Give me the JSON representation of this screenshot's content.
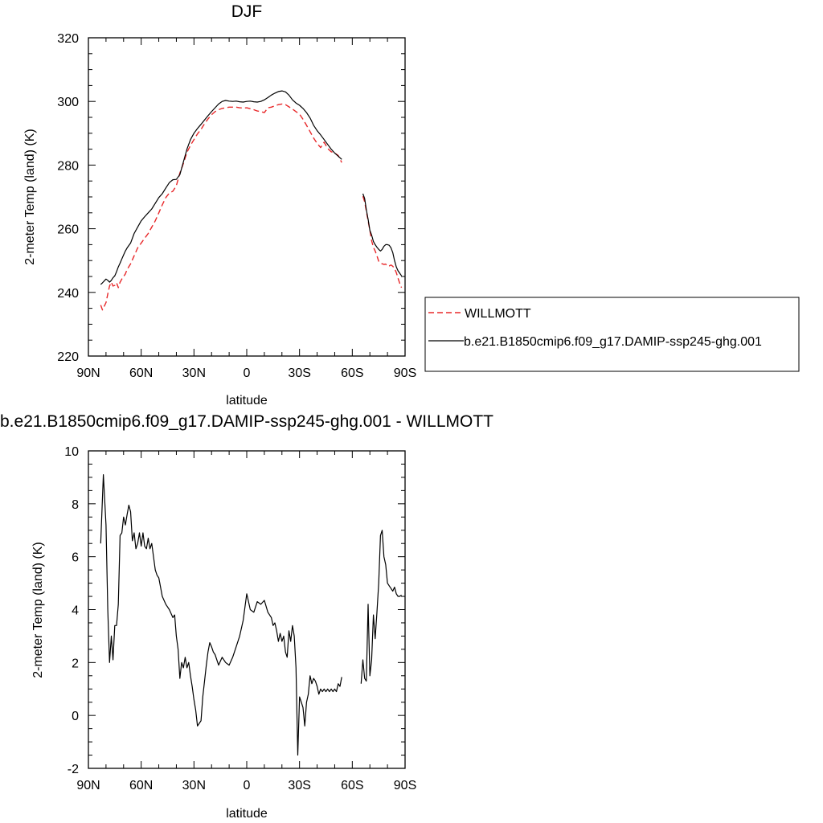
{
  "chart_data": [
    {
      "type": "line",
      "title": "DJF",
      "xlabel": "latitude",
      "ylabel": "2-meter Temp (land) (K)",
      "xlim": [
        90,
        -90
      ],
      "ylim": [
        220,
        320
      ],
      "x_ticks": [
        90,
        60,
        30,
        0,
        -30,
        -60,
        -90
      ],
      "x_tick_labels": [
        "90N",
        "60N",
        "30N",
        "0",
        "30S",
        "60S",
        "90S"
      ],
      "y_ticks": [
        220,
        240,
        260,
        280,
        300,
        320
      ],
      "y_tick_labels": [
        "220",
        "240",
        "260",
        "280",
        "300",
        "320"
      ],
      "legend": {
        "placement": "right",
        "entries": [
          "WILLMOTT",
          "b.e21.B1850cmip6.f09_g17.DAMIP-ssp245-ghg.001"
        ]
      },
      "series": [
        {
          "name": "WILLMOTT",
          "color": "#e8282a",
          "dash": true,
          "segments": [
            {
              "x": [
                83,
                82,
                80,
                79,
                78,
                77,
                76,
                75,
                74,
                73,
                72,
                71,
                70,
                69,
                68,
                66,
                64,
                62,
                60,
                58,
                56,
                54,
                52,
                50,
                48,
                46,
                44,
                42,
                40,
                38,
                36,
                34,
                32,
                30,
                28,
                26,
                24,
                22,
                20,
                18,
                16,
                14,
                12,
                10,
                8,
                6,
                4,
                2,
                0,
                -2,
                -4,
                -6,
                -8,
                -10,
                -12,
                -14,
                -16,
                -18,
                -20,
                -22,
                -24,
                -26,
                -28,
                -30,
                -32,
                -34,
                -36,
                -38,
                -40,
                -42,
                -44,
                -46,
                -48,
                -50,
                -52,
                -54
              ],
              "y": [
                236,
                234.5,
                236.8,
                239.5,
                242,
                243.2,
                242,
                242.2,
                243,
                241.5,
                243.2,
                244.2,
                245,
                245.8,
                247.2,
                249,
                251.5,
                254,
                255.5,
                257,
                258.5,
                260.5,
                262.5,
                265,
                267.5,
                269.8,
                271.2,
                271.8,
                273.5,
                277.5,
                280.5,
                284,
                286.2,
                288,
                289.8,
                291.2,
                293,
                294.5,
                295.8,
                296.8,
                297.4,
                297.8,
                298.0,
                298.2,
                298.2,
                298.2,
                298.0,
                297.9,
                298.0,
                297.7,
                297.4,
                297.0,
                296.8,
                296.5,
                298.0,
                298.2,
                298.6,
                299.0,
                299.2,
                299.0,
                298.3,
                297.6,
                296.8,
                296.0,
                294.4,
                292.5,
                290.5,
                288.5,
                286.8,
                285.5,
                287.2,
                285.2,
                284.2,
                283.8,
                283.0,
                280.8
              ]
            },
            {
              "x": [
                -66,
                -67,
                -68,
                -69,
                -70,
                -71,
                -72,
                -73,
                -74,
                -75,
                -76,
                -77,
                -78,
                -79,
                -80,
                -81,
                -82,
                -83,
                -84,
                -85,
                -86,
                -87,
                -88
              ],
              "y": [
                270.2,
                268.5,
                265.5,
                262.5,
                259.5,
                256.2,
                254.2,
                253.0,
                251.5,
                249.8,
                249.2,
                249.0,
                248.8,
                248.9,
                248.2,
                248.3,
                248.6,
                248.2,
                247.5,
                246.2,
                244.5,
                242.8,
                241.5
              ]
            }
          ]
        },
        {
          "name": "b.e21.B1850cmip6.f09_g17.DAMIP-ssp245-ghg.001",
          "color": "#000000",
          "dash": false,
          "segments": [
            {
              "x": [
                83,
                82,
                80,
                79,
                78,
                77,
                76,
                75,
                74,
                73,
                72,
                71,
                70,
                69,
                68,
                66,
                64,
                62,
                60,
                58,
                56,
                54,
                52,
                50,
                48,
                46,
                44,
                42,
                40,
                38,
                36,
                34,
                32,
                30,
                28,
                26,
                24,
                22,
                20,
                18,
                16,
                14,
                12,
                10,
                8,
                6,
                4,
                2,
                0,
                -2,
                -4,
                -6,
                -8,
                -10,
                -12,
                -14,
                -16,
                -18,
                -20,
                -22,
                -24,
                -26,
                -28,
                -30,
                -32,
                -34,
                -36,
                -38,
                -40,
                -42,
                -44,
                -46,
                -48,
                -50,
                -52,
                -54
              ],
              "y": [
                242.5,
                243.0,
                244.2,
                243.8,
                243.2,
                243.8,
                244.6,
                245.2,
                246.5,
                248.0,
                249.2,
                250.5,
                251.8,
                253.0,
                254.0,
                255.5,
                258.5,
                260.5,
                262.5,
                263.8,
                265.0,
                266.2,
                268.0,
                269.8,
                271.0,
                272.8,
                274.5,
                275.4,
                275.5,
                277.0,
                281.0,
                285.0,
                288.0,
                290.0,
                291.5,
                292.8,
                294.2,
                295.5,
                296.8,
                298.0,
                299.2,
                300.0,
                300.3,
                300.1,
                300.0,
                300.1,
                299.9,
                299.8,
                300.0,
                300.1,
                299.9,
                299.8,
                300.0,
                300.5,
                301.2,
                302.0,
                302.6,
                303.1,
                303.3,
                303.0,
                302.0,
                300.5,
                299.5,
                298.8,
                297.8,
                296.5,
                294.8,
                292.5,
                290.8,
                289.5,
                288.0,
                286.5,
                285.0,
                283.8,
                282.8,
                281.8
              ]
            },
            {
              "x": [
                -66,
                -67,
                -68,
                -69,
                -70,
                -71,
                -72,
                -73,
                -74,
                -75,
                -76,
                -77,
                -78,
                -79,
                -80,
                -81,
                -82,
                -83,
                -84,
                -85,
                -86,
                -87,
                -88
              ],
              "y": [
                271.0,
                269.5,
                266.0,
                263.0,
                259.5,
                258.0,
                256.0,
                255.0,
                254.2,
                253.5,
                253.0,
                253.5,
                254.5,
                255.0,
                255.0,
                254.8,
                254.0,
                252.5,
                250.0,
                248.0,
                246.8,
                246.0,
                245.2
              ]
            }
          ]
        }
      ]
    },
    {
      "type": "line",
      "title": "b.e21.B1850cmip6.f09_g17.DAMIP-ssp245-ghg.001 - WILLMOTT",
      "xlabel": "latitude",
      "ylabel": "2-meter Temp (land) (K)",
      "xlim": [
        90,
        -90
      ],
      "ylim": [
        -2,
        10
      ],
      "x_ticks": [
        90,
        60,
        30,
        0,
        -30,
        -60,
        -90
      ],
      "x_tick_labels": [
        "90N",
        "60N",
        "30N",
        "0",
        "30S",
        "60S",
        "90S"
      ],
      "y_ticks": [
        -2,
        0,
        2,
        4,
        6,
        8,
        10
      ],
      "y_tick_labels": [
        "-2",
        "0",
        "2",
        "4",
        "6",
        "8",
        "10"
      ],
      "series": [
        {
          "color": "#000000",
          "dash": false,
          "segments": [
            {
              "x": [
                83,
                81.5,
                80,
                79,
                78,
                77,
                76,
                75,
                74,
                73,
                72,
                71,
                70,
                69,
                68,
                67,
                66,
                65,
                64,
                63,
                62,
                61,
                60,
                59,
                58,
                57,
                56,
                55,
                54,
                53,
                52,
                51,
                50,
                48,
                46,
                44,
                42,
                41,
                40,
                39,
                38,
                37,
                36,
                35,
                34,
                33,
                32,
                31,
                30,
                29,
                28,
                27,
                26,
                25,
                24,
                23,
                22,
                21,
                20,
                19,
                18,
                16,
                14,
                12,
                10,
                8,
                6,
                4,
                2,
                0,
                -2,
                -4,
                -6,
                -8,
                -10,
                -12,
                -14,
                -15,
                -16,
                -17,
                -18,
                -19,
                -20,
                -21,
                -22,
                -23,
                -24,
                -25,
                -26,
                -27,
                -28,
                -29,
                -30,
                -31,
                -32,
                -33,
                -34,
                -35,
                -36,
                -37,
                -38,
                -39,
                -40,
                -41,
                -42,
                -43,
                -44,
                -45,
                -46,
                -47,
                -48,
                -49,
                -50,
                -51,
                -52,
                -53,
                -54
              ],
              "y": [
                6.5,
                9.1,
                7.2,
                4.0,
                2.0,
                3.0,
                2.1,
                3.4,
                3.4,
                4.2,
                6.8,
                6.9,
                7.5,
                7.2,
                7.6,
                7.95,
                7.7,
                6.6,
                6.9,
                6.3,
                6.5,
                6.9,
                6.4,
                6.9,
                6.4,
                6.3,
                6.7,
                6.3,
                6.5,
                6.0,
                5.5,
                5.3,
                5.2,
                4.5,
                4.2,
                4.0,
                3.7,
                3.8,
                3.0,
                2.5,
                1.4,
                2.0,
                1.8,
                2.2,
                1.8,
                2.0,
                1.5,
                1.1,
                0.6,
                0.2,
                -0.4,
                -0.3,
                -0.2,
                0.7,
                1.3,
                1.9,
                2.4,
                2.75,
                2.6,
                2.4,
                2.3,
                1.9,
                2.2,
                2.0,
                1.9,
                2.2,
                2.6,
                3.0,
                3.6,
                4.6,
                4.0,
                3.9,
                4.3,
                4.2,
                4.35,
                3.9,
                3.7,
                3.4,
                3.5,
                3.2,
                2.8,
                3.1,
                2.8,
                3.0,
                2.4,
                2.2,
                3.2,
                2.8,
                3.4,
                3.0,
                1.8,
                -1.5,
                0.7,
                0.5,
                0.3,
                -0.4,
                0.5,
                0.8,
                1.5,
                1.2,
                1.4,
                1.3,
                1.1,
                0.8,
                1.0,
                0.9,
                1.0,
                0.9,
                1.0,
                0.9,
                1.0,
                0.9,
                1.0,
                0.9,
                1.2,
                1.1,
                1.45
              ]
            },
            {
              "x": [
                -65,
                -66,
                -67,
                -68,
                -69,
                -70,
                -71,
                -72,
                -73,
                -74,
                -75,
                -76,
                -77,
                -78,
                -79,
                -80,
                -81,
                -82,
                -83,
                -84,
                -85,
                -86,
                -87,
                -88
              ],
              "y": [
                1.2,
                2.1,
                1.4,
                1.3,
                4.2,
                1.5,
                2.1,
                3.8,
                2.9,
                3.9,
                5.0,
                6.8,
                7.0,
                6.0,
                5.7,
                5.0,
                4.9,
                4.8,
                4.7,
                4.85,
                4.6,
                4.5,
                4.5,
                4.55
              ]
            }
          ]
        }
      ]
    }
  ]
}
